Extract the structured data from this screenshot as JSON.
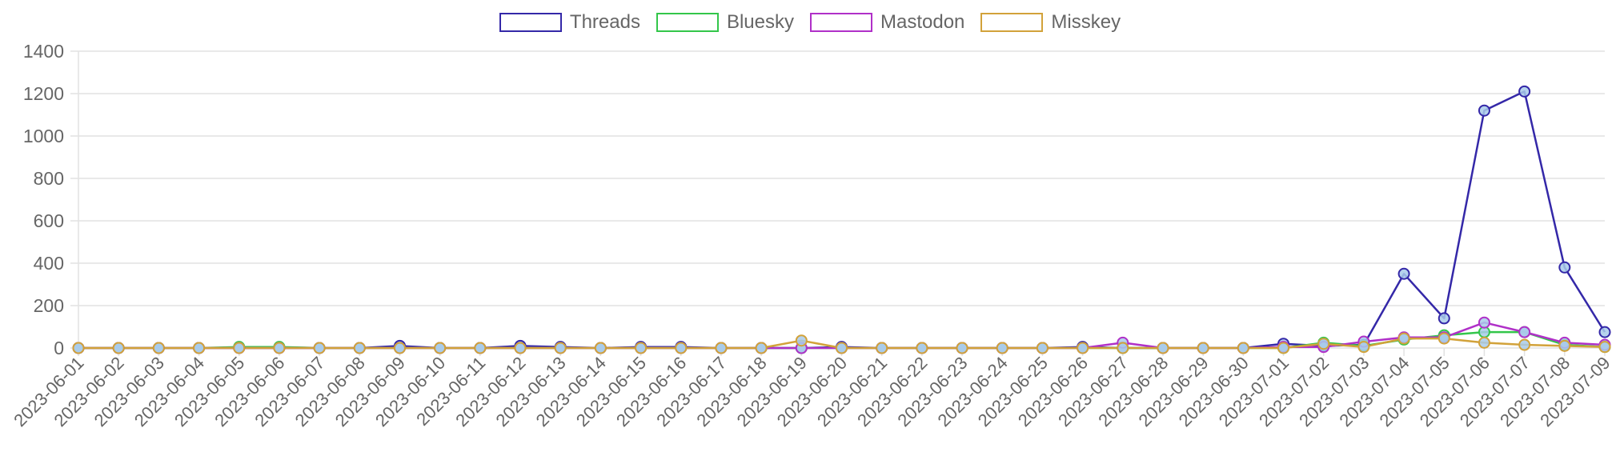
{
  "chart_data": {
    "type": "line",
    "title": "",
    "xlabel": "",
    "ylabel": "",
    "ylim": [
      0,
      1400
    ],
    "yticks": [
      0,
      200,
      400,
      600,
      800,
      1000,
      1200,
      1400
    ],
    "grid": true,
    "legend_position": "top-center",
    "point_color": "#a9cbea",
    "categories": [
      "2023-06-01",
      "2023-06-02",
      "2023-06-03",
      "2023-06-04",
      "2023-06-05",
      "2023-06-06",
      "2023-06-07",
      "2023-06-08",
      "2023-06-09",
      "2023-06-10",
      "2023-06-11",
      "2023-06-12",
      "2023-06-13",
      "2023-06-14",
      "2023-06-15",
      "2023-06-16",
      "2023-06-17",
      "2023-06-18",
      "2023-06-19",
      "2023-06-20",
      "2023-06-21",
      "2023-06-22",
      "2023-06-23",
      "2023-06-24",
      "2023-06-25",
      "2023-06-26",
      "2023-06-27",
      "2023-06-28",
      "2023-06-29",
      "2023-06-30",
      "2023-07-01",
      "2023-07-02",
      "2023-07-03",
      "2023-07-04",
      "2023-07-05",
      "2023-07-06",
      "2023-07-07",
      "2023-07-08",
      "2023-07-09"
    ],
    "series": [
      {
        "name": "Threads",
        "color": "#3428a8",
        "values": [
          0,
          0,
          0,
          0,
          0,
          0,
          0,
          0,
          10,
          0,
          0,
          10,
          5,
          0,
          5,
          5,
          0,
          0,
          0,
          5,
          0,
          0,
          0,
          0,
          0,
          5,
          0,
          0,
          0,
          0,
          20,
          10,
          15,
          350,
          140,
          1120,
          1210,
          380,
          75
        ]
      },
      {
        "name": "Bluesky",
        "color": "#33c64a",
        "values": [
          0,
          0,
          0,
          0,
          5,
          5,
          0,
          0,
          0,
          0,
          0,
          0,
          0,
          0,
          0,
          0,
          0,
          0,
          0,
          0,
          0,
          0,
          0,
          0,
          0,
          0,
          0,
          0,
          0,
          0,
          0,
          25,
          10,
          40,
          60,
          75,
          75,
          15,
          5
        ]
      },
      {
        "name": "Mastodon",
        "color": "#b030c8",
        "values": [
          0,
          0,
          0,
          0,
          0,
          0,
          0,
          0,
          0,
          0,
          0,
          0,
          0,
          0,
          0,
          0,
          0,
          0,
          0,
          0,
          0,
          0,
          0,
          0,
          0,
          0,
          25,
          0,
          0,
          0,
          5,
          5,
          30,
          50,
          50,
          120,
          75,
          25,
          15
        ]
      },
      {
        "name": "Misskey",
        "color": "#d2a23a",
        "values": [
          0,
          0,
          0,
          0,
          0,
          0,
          0,
          0,
          0,
          0,
          0,
          0,
          0,
          0,
          0,
          0,
          0,
          0,
          35,
          0,
          0,
          0,
          0,
          0,
          0,
          0,
          0,
          0,
          0,
          0,
          0,
          20,
          5,
          45,
          45,
          25,
          15,
          10,
          5
        ]
      }
    ]
  }
}
